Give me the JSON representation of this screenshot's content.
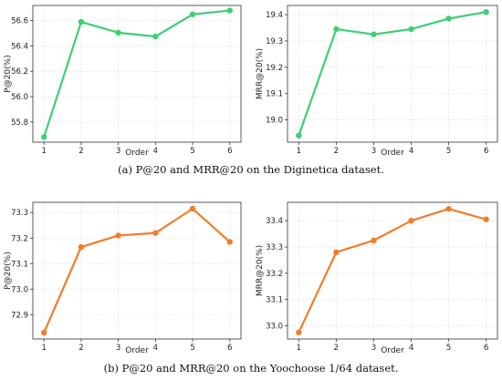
{
  "captions": {
    "a": "(a)  P@20 and MRR@20 on the Diginetica dataset.",
    "b": "(b)  P@20 and MRR@20 on the Yoochoose 1/64 dataset."
  },
  "chart_data": [
    {
      "id": "diginetica-p20",
      "type": "line",
      "xlabel": "Order",
      "ylabel": "P@20(%)",
      "x": [
        1,
        2,
        3,
        4,
        5,
        6
      ],
      "values": [
        55.68,
        56.59,
        56.505,
        56.475,
        56.65,
        56.68
      ],
      "xticks": [
        1,
        2,
        3,
        4,
        5,
        6
      ],
      "yticks": [
        55.8,
        56.0,
        56.2,
        56.4,
        56.6
      ],
      "ylim": [
        55.64,
        56.72
      ],
      "color": "#3ecf74",
      "grid": true
    },
    {
      "id": "diginetica-mrr20",
      "type": "line",
      "xlabel": "Order",
      "ylabel": "MRR@20(%)",
      "x": [
        1,
        2,
        3,
        4,
        5,
        6
      ],
      "values": [
        18.94,
        19.345,
        19.325,
        19.345,
        19.385,
        19.41
      ],
      "xticks": [
        1,
        2,
        3,
        4,
        5,
        6
      ],
      "yticks": [
        19.0,
        19.1,
        19.2,
        19.3,
        19.4
      ],
      "ylim": [
        18.915,
        19.435
      ],
      "color": "#3ecf74",
      "grid": true
    },
    {
      "id": "yoochoose-p20",
      "type": "line",
      "xlabel": "Order",
      "ylabel": "P@20(%)",
      "x": [
        1,
        2,
        3,
        4,
        5,
        6
      ],
      "values": [
        72.83,
        73.165,
        73.21,
        73.22,
        73.315,
        73.185
      ],
      "xticks": [
        1,
        2,
        3,
        4,
        5,
        6
      ],
      "yticks": [
        72.9,
        73.0,
        73.1,
        73.2,
        73.3
      ],
      "ylim": [
        72.805,
        73.34
      ],
      "color": "#f07d2a",
      "grid": true
    },
    {
      "id": "yoochoose-mrr20",
      "type": "line",
      "xlabel": "Order",
      "ylabel": "MRR@20(%)",
      "x": [
        1,
        2,
        3,
        4,
        5,
        6
      ],
      "values": [
        32.975,
        33.28,
        33.325,
        33.4,
        33.445,
        33.405
      ],
      "xticks": [
        1,
        2,
        3,
        4,
        5,
        6
      ],
      "yticks": [
        33.0,
        33.1,
        33.2,
        33.3,
        33.4
      ],
      "ylim": [
        32.95,
        33.47
      ],
      "color": "#f07d2a",
      "grid": true
    }
  ]
}
